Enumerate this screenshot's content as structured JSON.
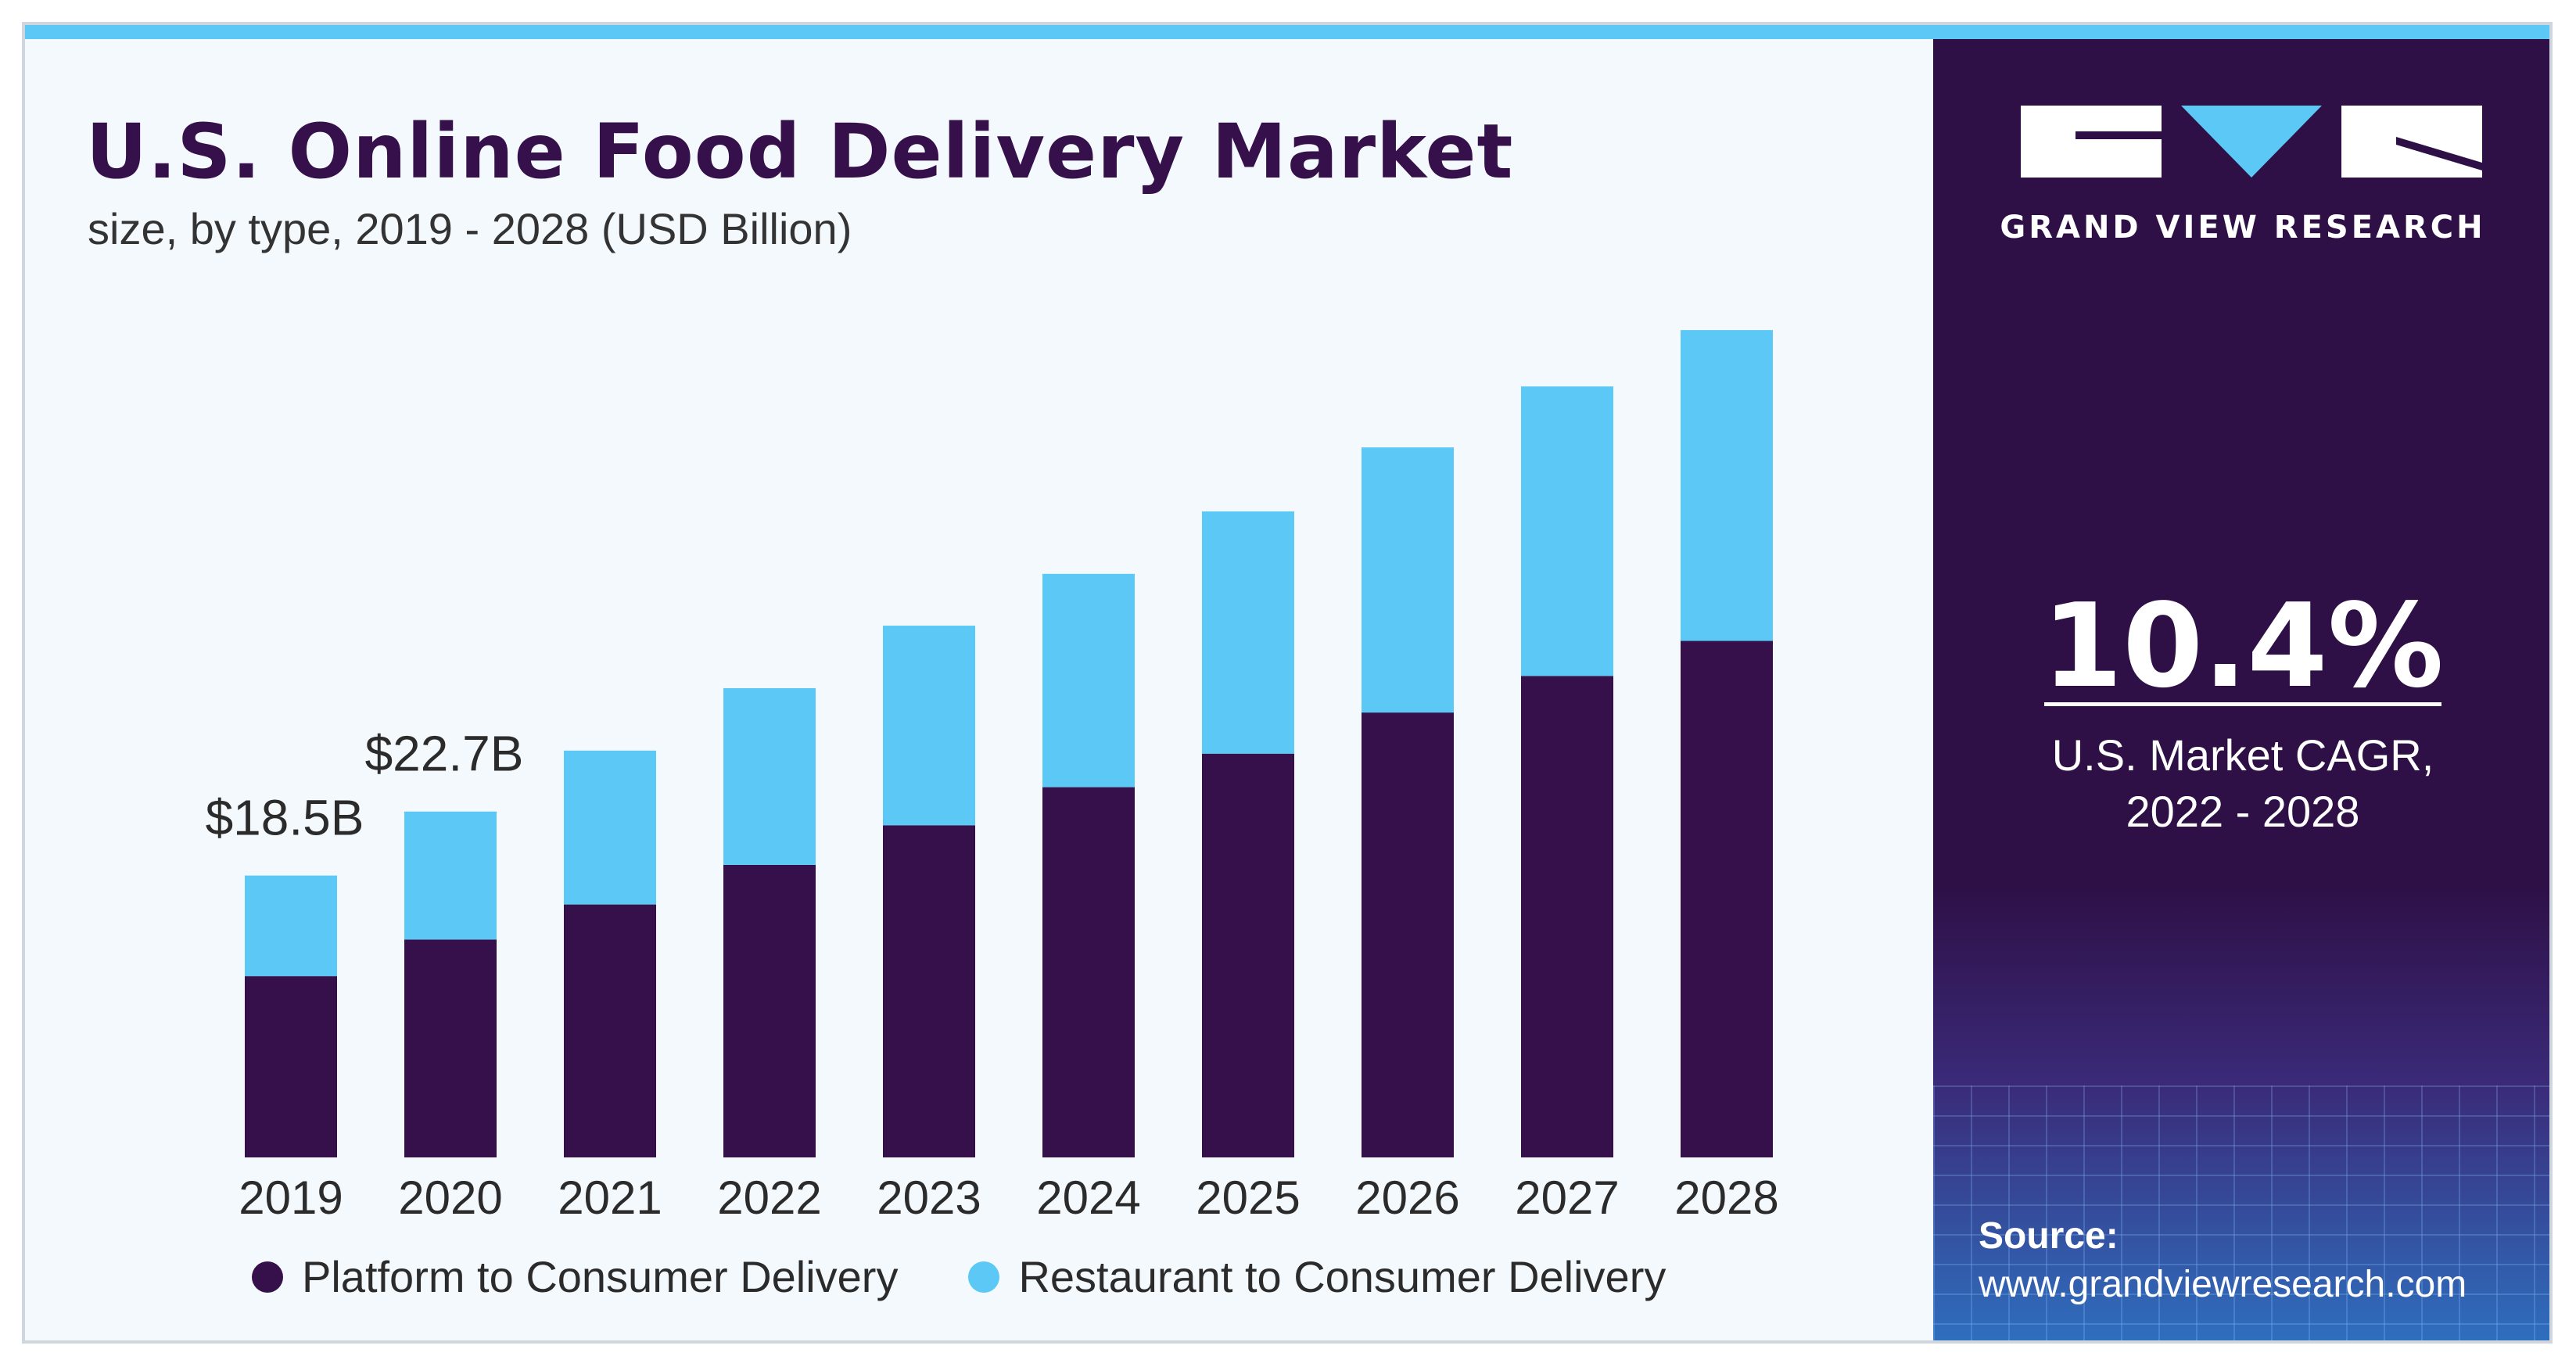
{
  "header": {
    "title": "U.S. Online Food Delivery Market",
    "subtitle": "size, by type, 2019 - 2028 (USD Billion)"
  },
  "sidebar": {
    "brand": "GRAND VIEW RESEARCH",
    "cagr_value": "10.4%",
    "cagr_label_line1": "U.S. Market CAGR,",
    "cagr_label_line2": "2022 - 2028",
    "source_label": "Source:",
    "source_url": "www.grandviewresearch.com"
  },
  "colors": {
    "platform": "#35104a",
    "restaurant": "#5bc8f5",
    "sidebar": "#2e1047"
  },
  "chart_data": {
    "type": "bar",
    "stacked": true,
    "title": "U.S. Online Food Delivery Market",
    "subtitle": "size, by type, 2019 - 2028 (USD Billion)",
    "categories": [
      "2019",
      "2020",
      "2021",
      "2022",
      "2023",
      "2024",
      "2025",
      "2026",
      "2027",
      "2028"
    ],
    "series": [
      {
        "name": "Platform to Consumer Delivery",
        "values": [
          11.9,
          14.3,
          16.6,
          19.2,
          21.8,
          24.3,
          26.5,
          29.2,
          31.6,
          33.9
        ]
      },
      {
        "name": "Restaurant to Consumer Delivery",
        "values": [
          6.6,
          8.4,
          10.1,
          11.6,
          13.1,
          14.0,
          15.9,
          17.4,
          19.0,
          20.4
        ]
      }
    ],
    "data_labels": [
      {
        "category": "2019",
        "text": "$18.5B"
      },
      {
        "category": "2020",
        "text": "$22.7B"
      }
    ],
    "ylim": [
      0,
      58
    ],
    "xlabel": "",
    "ylabel": "",
    "legend": "bottom"
  }
}
